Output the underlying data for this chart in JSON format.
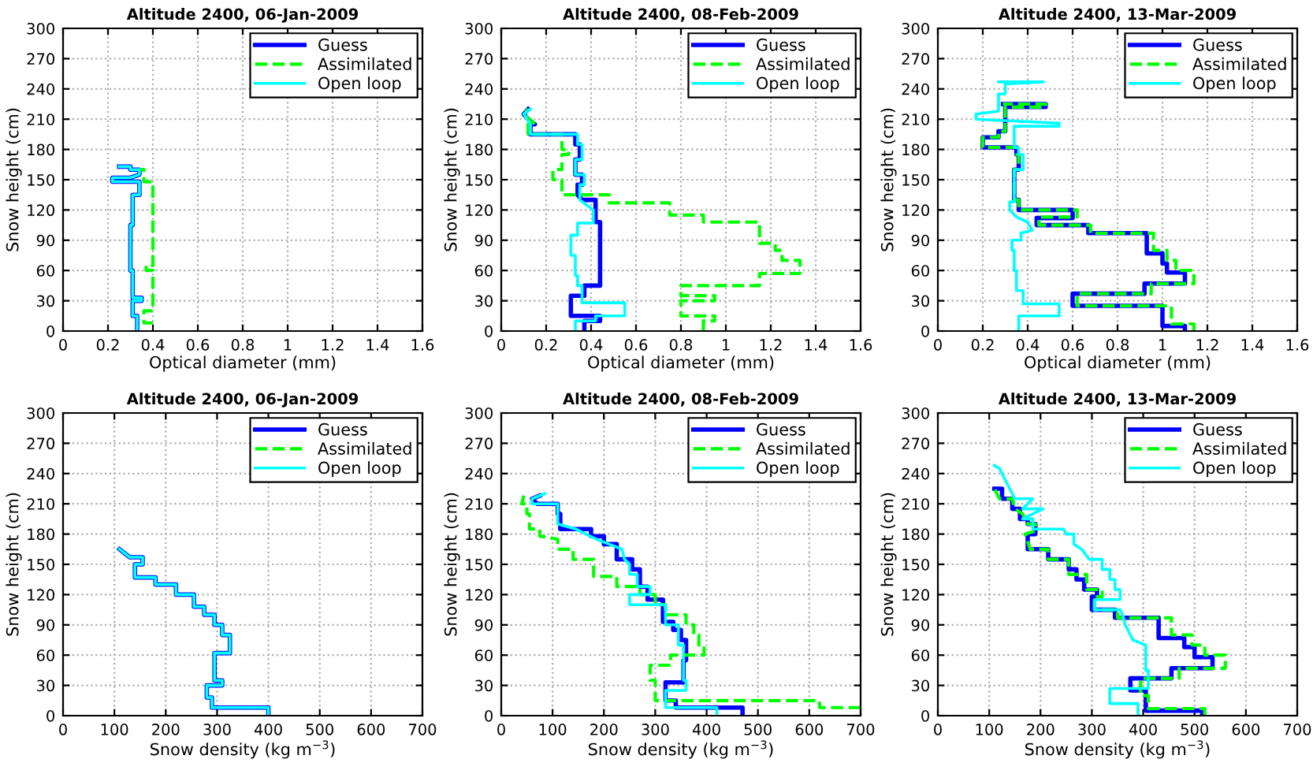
{
  "chart_data": [
    {
      "type": "line",
      "title": "Altitude 2400, 06-Jan-2009",
      "xlabel": "Optical diameter (mm)",
      "ylabel": "Snow height (cm)",
      "xlim": [
        0,
        1.6
      ],
      "xticks": [
        0,
        0.2,
        0.4,
        0.6,
        0.8,
        1,
        1.2,
        1.4,
        1.6
      ],
      "ylim": [
        0,
        300
      ],
      "yticks": [
        0,
        30,
        60,
        90,
        120,
        150,
        180,
        210,
        240,
        270,
        300
      ],
      "grid": true,
      "legend": "top right",
      "series": [
        {
          "name": "Guess",
          "color": "#0000ff",
          "line_style": "solid",
          "x": [
            0.33,
            0.33,
            0.31,
            0.31,
            0.35,
            0.35,
            0.31,
            0.31,
            0.3,
            0.3,
            0.31,
            0.31,
            0.34,
            0.34,
            0.22,
            0.22,
            0.3,
            0.34,
            0.34,
            0.3,
            0.3,
            0.25
          ],
          "values": [
            0,
            15,
            15,
            30,
            30,
            33,
            33,
            60,
            60,
            105,
            105,
            135,
            135,
            148,
            148,
            152,
            152,
            155,
            160,
            160,
            163,
            163
          ]
        },
        {
          "name": "Assimilated",
          "color": "#00ff00",
          "line_style": "dashed",
          "x": [
            0.4,
            0.36,
            0.36,
            0.4,
            0.4,
            0.37,
            0.37,
            0.4,
            0.4,
            0.36,
            0.36,
            0.34
          ],
          "values": [
            8,
            8,
            20,
            20,
            60,
            60,
            65,
            65,
            148,
            148,
            160,
            160
          ]
        },
        {
          "name": "Open loop",
          "color": "#00ffff",
          "line_style": "solid",
          "x": [
            0.33,
            0.33,
            0.31,
            0.31,
            0.35,
            0.35,
            0.31,
            0.31,
            0.3,
            0.3,
            0.31,
            0.31,
            0.34,
            0.34,
            0.22,
            0.22,
            0.3,
            0.34,
            0.34,
            0.3,
            0.3,
            0.25
          ],
          "values": [
            0,
            15,
            15,
            30,
            30,
            33,
            33,
            60,
            60,
            105,
            105,
            135,
            135,
            148,
            148,
            152,
            152,
            155,
            160,
            160,
            163,
            163
          ]
        }
      ]
    },
    {
      "type": "line",
      "title": "Altitude 2400, 08-Feb-2009",
      "xlabel": "Optical diameter (mm)",
      "ylabel": "Snow height (cm)",
      "xlim": [
        0,
        1.6
      ],
      "xticks": [
        0,
        0.2,
        0.4,
        0.6,
        0.8,
        1,
        1.2,
        1.4,
        1.6
      ],
      "ylim": [
        0,
        300
      ],
      "yticks": [
        0,
        30,
        60,
        90,
        120,
        150,
        180,
        210,
        240,
        270,
        300
      ],
      "grid": true,
      "legend": "top right",
      "series": [
        {
          "name": "Guess",
          "color": "#0000ff",
          "line_style": "solid",
          "x": [
            0.37,
            0.37,
            0.44,
            0.44,
            0.31,
            0.31,
            0.37,
            0.37,
            0.44,
            0.44,
            0.42,
            0.42,
            0.36,
            0.34,
            0.34,
            0.36,
            0.36,
            0.33,
            0.33,
            0.35,
            0.35,
            0.33,
            0.33,
            0.13,
            0.13,
            0.15,
            0.12,
            0.1,
            0.12
          ],
          "values": [
            0,
            10,
            10,
            15,
            15,
            35,
            35,
            45,
            45,
            108,
            108,
            130,
            130,
            135,
            145,
            145,
            155,
            155,
            170,
            170,
            185,
            185,
            195,
            195,
            205,
            205,
            210,
            215,
            220
          ]
        },
        {
          "name": "Assimilated",
          "color": "#00ff00",
          "line_style": "dashed",
          "x": [
            0.9,
            0.9,
            0.95,
            0.95,
            0.8,
            0.8,
            0.95,
            0.95,
            0.8,
            0.8,
            1.15,
            1.15,
            1.33,
            1.33,
            1.25,
            1.25,
            1.22,
            1.22,
            1.15,
            1.15,
            0.9,
            0.9,
            0.75,
            0.75,
            0.48,
            0.48,
            0.27,
            0.27,
            0.23,
            0.23,
            0.27,
            0.27,
            0.3,
            0.3,
            0.27,
            0.27,
            0.12,
            0.12,
            0.15,
            0.1,
            0.12
          ],
          "values": [
            0,
            10,
            10,
            15,
            15,
            30,
            30,
            35,
            35,
            45,
            45,
            57,
            57,
            70,
            70,
            80,
            80,
            87,
            87,
            108,
            108,
            115,
            115,
            127,
            127,
            135,
            135,
            150,
            150,
            160,
            160,
            175,
            175,
            180,
            180,
            195,
            195,
            205,
            205,
            215,
            220
          ]
        },
        {
          "name": "Open loop",
          "color": "#00ffff",
          "line_style": "solid",
          "x": [
            0.33,
            0.33,
            0.42,
            0.42,
            0.55,
            0.55,
            0.36,
            0.36,
            0.34,
            0.34,
            0.33,
            0.33,
            0.31,
            0.31,
            0.34,
            0.34,
            0.41,
            0.41,
            0.38,
            0.35,
            0.35,
            0.37,
            0.37,
            0.33,
            0.33,
            0.36,
            0.36,
            0.34,
            0.34,
            0.13,
            0.13,
            0.1,
            0.13
          ],
          "values": [
            0,
            10,
            10,
            15,
            15,
            28,
            28,
            45,
            45,
            55,
            55,
            75,
            75,
            95,
            95,
            107,
            107,
            120,
            125,
            130,
            145,
            145,
            155,
            155,
            170,
            170,
            185,
            185,
            195,
            195,
            205,
            215,
            220
          ]
        }
      ]
    },
    {
      "type": "line",
      "title": "Altitude 2400, 13-Mar-2009",
      "xlabel": "Optical diameter (mm)",
      "ylabel": "Snow height (cm)",
      "xlim": [
        0,
        1.6
      ],
      "xticks": [
        0,
        0.2,
        0.4,
        0.6,
        0.8,
        1,
        1.2,
        1.4,
        1.6
      ],
      "ylim": [
        0,
        300
      ],
      "yticks": [
        0,
        30,
        60,
        90,
        120,
        150,
        180,
        210,
        240,
        270,
        300
      ],
      "grid": true,
      "legend": "top right",
      "series": [
        {
          "name": "Guess",
          "color": "#0000ff",
          "line_style": "solid",
          "x": [
            1.1,
            1.1,
            1.0,
            1.0,
            0.6,
            0.6,
            0.92,
            0.92,
            1.1,
            1.1,
            1.02,
            1.02,
            1.0,
            1.0,
            0.93,
            0.93,
            0.67,
            0.67,
            0.44,
            0.44,
            0.6,
            0.6,
            0.36,
            0.36,
            0.34,
            0.34,
            0.36,
            0.36,
            0.35,
            0.35,
            0.2,
            0.2,
            0.27,
            0.27,
            0.3,
            0.3,
            0.48,
            0.48,
            0.29
          ],
          "values": [
            0,
            5,
            5,
            25,
            25,
            37,
            37,
            47,
            47,
            58,
            58,
            67,
            67,
            77,
            77,
            97,
            97,
            105,
            105,
            112,
            112,
            120,
            120,
            130,
            130,
            160,
            160,
            175,
            175,
            182,
            182,
            192,
            192,
            198,
            198,
            222,
            222,
            225,
            225
          ]
        },
        {
          "name": "Assimilated",
          "color": "#00ff00",
          "line_style": "dashed",
          "x": [
            1.14,
            1.14,
            1.04,
            1.04,
            0.62,
            0.62,
            0.95,
            0.95,
            1.14,
            1.14,
            1.06,
            1.06,
            1.02,
            1.02,
            0.96,
            0.96,
            0.68,
            0.68,
            0.45,
            0.45,
            0.62,
            0.62,
            0.36,
            0.36,
            0.34,
            0.34,
            0.36,
            0.36,
            0.35,
            0.35,
            0.2,
            0.2,
            0.27,
            0.27,
            0.3,
            0.3,
            0.48,
            0.48,
            0.29
          ],
          "values": [
            0,
            7,
            7,
            25,
            25,
            37,
            37,
            47,
            47,
            60,
            60,
            70,
            70,
            80,
            80,
            97,
            97,
            105,
            105,
            113,
            113,
            120,
            120,
            130,
            130,
            160,
            160,
            175,
            175,
            182,
            182,
            192,
            192,
            198,
            198,
            222,
            222,
            225,
            225
          ]
        },
        {
          "name": "Open loop",
          "color": "#00ffff",
          "line_style": "solid",
          "x": [
            0.36,
            0.36,
            0.54,
            0.54,
            0.38,
            0.38,
            0.35,
            0.35,
            0.34,
            0.34,
            0.33,
            0.33,
            0.37,
            0.37,
            0.42,
            0.4,
            0.35,
            0.32,
            0.32,
            0.34,
            0.34,
            0.38,
            0.38,
            0.36,
            0.36,
            0.34,
            0.34,
            0.54,
            0.54,
            0.17,
            0.17,
            0.27,
            0.27,
            0.3,
            0.3,
            0.47,
            0.27
          ],
          "values": [
            0,
            15,
            15,
            27,
            27,
            40,
            40,
            60,
            60,
            80,
            80,
            90,
            90,
            97,
            100,
            108,
            113,
            120,
            128,
            128,
            160,
            160,
            175,
            175,
            182,
            182,
            203,
            203,
            206,
            210,
            215,
            218,
            235,
            235,
            245,
            247,
            247
          ]
        }
      ]
    },
    {
      "type": "line",
      "title": "Altitude 2400, 06-Jan-2009",
      "xlabel": "Snow density (kg m$^{−3}$)",
      "ylabel": "Snow height (cm)",
      "xlim": [
        0,
        700
      ],
      "xticks": [
        0,
        100,
        200,
        300,
        400,
        500,
        600,
        700
      ],
      "ylim": [
        0,
        300
      ],
      "yticks": [
        0,
        30,
        60,
        90,
        120,
        150,
        180,
        210,
        240,
        270,
        300
      ],
      "grid": true,
      "legend": "top right",
      "series": [
        {
          "name": "Guess",
          "color": "#0000ff",
          "line_style": "solid",
          "x": [
            400,
            400,
            290,
            290,
            280,
            280,
            310,
            310,
            295,
            295,
            325,
            325,
            310,
            310,
            295,
            295,
            275,
            275,
            255,
            255,
            220,
            220,
            180,
            180,
            140,
            140,
            155,
            155,
            130,
            110
          ],
          "values": [
            0,
            8,
            8,
            18,
            18,
            30,
            30,
            35,
            35,
            62,
            62,
            80,
            80,
            90,
            90,
            100,
            100,
            108,
            108,
            120,
            120,
            130,
            130,
            137,
            137,
            150,
            150,
            157,
            157,
            165
          ]
        },
        {
          "name": "Assimilated",
          "color": "#00ff00",
          "line_style": "dashed"
        },
        {
          "name": "Open loop",
          "color": "#00ffff",
          "line_style": "solid",
          "x": [
            400,
            400,
            290,
            290,
            280,
            280,
            310,
            310,
            295,
            295,
            325,
            325,
            310,
            310,
            295,
            295,
            275,
            275,
            255,
            255,
            220,
            220,
            180,
            180,
            140,
            140,
            155,
            155,
            130,
            110
          ],
          "values": [
            0,
            8,
            8,
            18,
            18,
            30,
            30,
            35,
            35,
            62,
            62,
            80,
            80,
            90,
            90,
            100,
            100,
            108,
            108,
            120,
            120,
            130,
            130,
            137,
            137,
            150,
            150,
            157,
            157,
            165
          ]
        }
      ]
    },
    {
      "type": "line",
      "title": "Altitude 2400, 08-Feb-2009",
      "xlabel": "Snow density (kg m$^{−3}$)",
      "ylabel": "Snow height (cm)",
      "xlim": [
        0,
        700
      ],
      "xticks": [
        0,
        100,
        200,
        300,
        400,
        500,
        600,
        700
      ],
      "ylim": [
        0,
        300
      ],
      "yticks": [
        0,
        30,
        60,
        90,
        120,
        150,
        180,
        210,
        240,
        270,
        300
      ],
      "grid": true,
      "legend": "top right",
      "series": [
        {
          "name": "Guess",
          "color": "#0000ff",
          "line_style": "solid",
          "x": [
            470,
            470,
            340,
            340,
            320,
            320,
            355,
            355,
            360,
            360,
            350,
            350,
            335,
            335,
            315,
            315,
            285,
            285,
            270,
            270,
            255,
            255,
            225,
            225,
            200,
            200,
            175,
            175,
            115,
            115,
            110,
            110,
            70,
            60,
            75
          ],
          "values": [
            0,
            8,
            8,
            15,
            15,
            33,
            33,
            55,
            55,
            75,
            75,
            85,
            85,
            93,
            93,
            115,
            115,
            128,
            128,
            145,
            145,
            155,
            155,
            170,
            170,
            178,
            178,
            185,
            185,
            200,
            200,
            210,
            210,
            215,
            218
          ]
        },
        {
          "name": "Assimilated",
          "color": "#00ff00",
          "line_style": "dashed",
          "x": [
            700,
            620,
            620,
            300,
            300,
            290,
            290,
            330,
            330,
            395,
            395,
            385,
            385,
            375,
            375,
            360,
            360,
            320,
            320,
            300,
            300,
            270,
            270,
            225,
            225,
            180,
            180,
            140,
            140,
            110,
            110,
            75,
            75,
            55,
            55,
            50,
            50,
            40,
            45
          ],
          "values": [
            8,
            8,
            15,
            15,
            35,
            35,
            50,
            50,
            60,
            60,
            70,
            70,
            80,
            80,
            90,
            90,
            100,
            100,
            110,
            110,
            120,
            120,
            128,
            128,
            138,
            138,
            155,
            155,
            165,
            165,
            175,
            178,
            185,
            185,
            200,
            200,
            210,
            210,
            220
          ]
        },
        {
          "name": "Open loop",
          "color": "#00ffff",
          "line_style": "solid",
          "x": [
            420,
            420,
            320,
            320,
            360,
            360,
            355,
            355,
            345,
            345,
            320,
            320,
            250,
            250,
            290,
            290,
            265,
            265,
            250,
            250,
            240,
            235,
            210,
            185,
            145,
            110,
            110,
            60,
            60,
            85
          ],
          "values": [
            0,
            8,
            8,
            25,
            25,
            35,
            35,
            70,
            70,
            90,
            90,
            110,
            110,
            120,
            120,
            128,
            128,
            140,
            140,
            150,
            155,
            165,
            170,
            175,
            185,
            190,
            210,
            210,
            215,
            220
          ]
        }
      ]
    },
    {
      "type": "line",
      "title": "Altitude 2400, 13-Mar-2009",
      "xlabel": "Snow density (kg m$^{−3}$)",
      "ylabel": "Snow height (cm)",
      "xlim": [
        0,
        700
      ],
      "xticks": [
        0,
        100,
        200,
        300,
        400,
        500,
        600,
        700
      ],
      "ylim": [
        0,
        300
      ],
      "yticks": [
        0,
        30,
        60,
        90,
        120,
        150,
        180,
        210,
        240,
        270,
        300
      ],
      "grid": true,
      "legend": "top right",
      "series": [
        {
          "name": "Guess",
          "color": "#0000ff",
          "line_style": "solid",
          "x": [
            515,
            515,
            405,
            405,
            375,
            375,
            455,
            455,
            535,
            535,
            500,
            500,
            480,
            480,
            430,
            430,
            345,
            345,
            300,
            300,
            310,
            310,
            285,
            285,
            270,
            270,
            255,
            255,
            215,
            215,
            175,
            175,
            190,
            190,
            175,
            175,
            160,
            160,
            145,
            145,
            125,
            125,
            110
          ],
          "values": [
            0,
            5,
            5,
            25,
            25,
            37,
            37,
            47,
            47,
            58,
            58,
            68,
            68,
            77,
            77,
            97,
            97,
            105,
            105,
            118,
            118,
            125,
            125,
            135,
            135,
            145,
            145,
            155,
            155,
            165,
            165,
            180,
            180,
            190,
            190,
            195,
            195,
            205,
            205,
            215,
            215,
            225,
            225
          ]
        },
        {
          "name": "Assimilated",
          "color": "#00ff00",
          "line_style": "dashed",
          "x": [
            520,
            520,
            410,
            410,
            395,
            395,
            470,
            470,
            560,
            560,
            520,
            520,
            495,
            495,
            455,
            455,
            350,
            350,
            305,
            305,
            320,
            320,
            290,
            290,
            255,
            255,
            215,
            215,
            180,
            170,
            190,
            190,
            175,
            165,
            150,
            145,
            120,
            110
          ],
          "values": [
            0,
            7,
            7,
            20,
            20,
            37,
            37,
            47,
            47,
            60,
            60,
            70,
            70,
            80,
            80,
            97,
            97,
            105,
            105,
            118,
            118,
            125,
            125,
            140,
            140,
            155,
            155,
            165,
            165,
            180,
            183,
            190,
            190,
            200,
            205,
            215,
            215,
            225
          ]
        },
        {
          "name": "Open loop",
          "color": "#00ffff",
          "line_style": "solid",
          "x": [
            390,
            390,
            335,
            335,
            410,
            410,
            405,
            405,
            380,
            365,
            360,
            355,
            305,
            305,
            355,
            355,
            345,
            345,
            335,
            335,
            320,
            320,
            295,
            280,
            265,
            265,
            250,
            245,
            185,
            185,
            165,
            205,
            165,
            185,
            150,
            140,
            130,
            120,
            110
          ],
          "values": [
            0,
            12,
            12,
            27,
            27,
            45,
            45,
            70,
            75,
            90,
            100,
            105,
            105,
            115,
            115,
            125,
            125,
            135,
            135,
            145,
            145,
            155,
            155,
            165,
            170,
            180,
            180,
            185,
            185,
            195,
            195,
            205,
            205,
            215,
            215,
            225,
            235,
            245,
            248
          ]
        }
      ]
    }
  ]
}
